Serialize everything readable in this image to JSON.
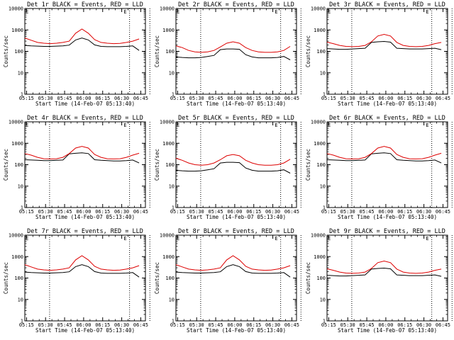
{
  "chart_data": [
    {
      "type": "line",
      "title": "Det 1r BLACK = Events, RED = LLD",
      "ylabel": "Counts/sec",
      "xlabel": "Start Time (14-Feb-07 05:13:40)",
      "yscale": "log",
      "ylim": [
        1,
        10000
      ],
      "ytick_labels": [
        "1",
        "10",
        "100",
        "1000",
        "10000"
      ],
      "xtick_labels": [
        "05:15",
        "05:30",
        "05:45",
        "06:00",
        "06:15",
        "06:30",
        "06:45"
      ],
      "markers_minutes": [
        19.5,
        82.5,
        98.5
      ],
      "series": [
        {
          "name": "Events",
          "color": "#000000",
          "values": [
            190,
            180,
            175,
            170,
            170,
            175,
            180,
            195,
            340,
            420,
            340,
            200,
            170,
            165,
            165,
            165,
            170,
            180,
            110
          ]
        },
        {
          "name": "LLD",
          "color": "#dd0000",
          "values": [
            420,
            330,
            260,
            240,
            230,
            240,
            260,
            300,
            700,
            1100,
            700,
            350,
            260,
            240,
            230,
            235,
            260,
            300,
            380
          ]
        }
      ]
    },
    {
      "type": "line",
      "title": "Det 2r BLACK = Events, RED = LLD",
      "ylabel": "Counts/sec",
      "xlabel": "Start Time (14-Feb-07 05:13:40)",
      "yscale": "log",
      "ylim": [
        1,
        10000
      ],
      "ytick_labels": [
        "1",
        "10",
        "100",
        "1000",
        "10000"
      ],
      "xtick_labels": [
        "05:15",
        "05:30",
        "05:45",
        "06:00",
        "06:15",
        "06:30",
        "06:45"
      ],
      "markers_minutes": [
        19.5,
        82.5,
        98.5
      ],
      "series": [
        {
          "name": "Events",
          "color": "#000000",
          "values": [
            55,
            52,
            50,
            50,
            52,
            58,
            65,
            120,
            130,
            130,
            125,
            70,
            55,
            50,
            50,
            50,
            52,
            58,
            40
          ]
        },
        {
          "name": "LLD",
          "color": "#dd0000",
          "values": [
            180,
            150,
            110,
            95,
            90,
            95,
            110,
            160,
            240,
            280,
            240,
            150,
            110,
            95,
            90,
            90,
            95,
            110,
            170
          ]
        }
      ]
    },
    {
      "type": "line",
      "title": "Det 3r BLACK = Events, RED = LLD",
      "ylabel": "Counts/sec",
      "xlabel": "Start Time (14-Feb-07 05:13:40)",
      "yscale": "log",
      "ylim": [
        1,
        10000
      ],
      "ytick_labels": [
        "1",
        "10",
        "100",
        "1000",
        "10000"
      ],
      "xtick_labels": [
        "05:15",
        "05:30",
        "05:45",
        "06:00",
        "06:15",
        "06:30",
        "06:45"
      ],
      "markers_minutes": [
        19.5,
        82.5,
        98.5
      ],
      "series": [
        {
          "name": "Events",
          "color": "#000000",
          "values": [
            135,
            130,
            125,
            125,
            130,
            135,
            140,
            260,
            280,
            290,
            270,
            140,
            135,
            130,
            130,
            130,
            135,
            140,
            120
          ]
        },
        {
          "name": "LLD",
          "color": "#dd0000",
          "values": [
            270,
            230,
            190,
            170,
            165,
            170,
            190,
            280,
            520,
            620,
            520,
            260,
            190,
            170,
            165,
            170,
            190,
            230,
            260
          ]
        }
      ]
    },
    {
      "type": "line",
      "title": "Det 4r BLACK = Events, RED = LLD",
      "ylabel": "Counts/sec",
      "xlabel": "Start Time (14-Feb-07 05:13:40)",
      "yscale": "log",
      "ylim": [
        1,
        10000
      ],
      "ytick_labels": [
        "1",
        "10",
        "100",
        "1000",
        "10000"
      ],
      "xtick_labels": [
        "05:15",
        "05:30",
        "05:45",
        "06:00",
        "06:15",
        "06:30",
        "06:45"
      ],
      "markers_minutes": [
        19.5,
        82.5,
        98.5
      ],
      "series": [
        {
          "name": "Events",
          "color": "#000000",
          "values": [
            170,
            165,
            160,
            155,
            155,
            160,
            165,
            320,
            340,
            360,
            330,
            170,
            160,
            155,
            150,
            150,
            155,
            165,
            120
          ]
        },
        {
          "name": "LLD",
          "color": "#dd0000",
          "values": [
            330,
            280,
            220,
            190,
            185,
            190,
            220,
            330,
            600,
            720,
            600,
            300,
            220,
            190,
            185,
            190,
            220,
            280,
            340
          ]
        }
      ]
    },
    {
      "type": "line",
      "title": "Det 5r BLACK = Events, RED = LLD",
      "ylabel": "Counts/sec",
      "xlabel": "Start Time (14-Feb-07 05:13:40)",
      "yscale": "log",
      "ylim": [
        1,
        10000
      ],
      "ytick_labels": [
        "1",
        "10",
        "100",
        "1000",
        "10000"
      ],
      "xtick_labels": [
        "05:15",
        "05:30",
        "05:45",
        "06:00",
        "06:15",
        "06:30",
        "06:45"
      ],
      "markers_minutes": [
        19.5,
        82.5,
        98.5
      ],
      "series": [
        {
          "name": "Events",
          "color": "#000000",
          "values": [
            55,
            52,
            50,
            50,
            52,
            58,
            65,
            120,
            130,
            130,
            125,
            70,
            55,
            50,
            50,
            50,
            52,
            58,
            40
          ]
        },
        {
          "name": "LLD",
          "color": "#dd0000",
          "values": [
            200,
            160,
            120,
            100,
            95,
            100,
            120,
            170,
            260,
            300,
            260,
            160,
            120,
            100,
            95,
            95,
            100,
            120,
            180
          ]
        }
      ]
    },
    {
      "type": "line",
      "title": "Det 6r BLACK = Events, RED = LLD",
      "ylabel": "Counts/sec",
      "xlabel": "Start Time (14-Feb-07 05:13:40)",
      "yscale": "log",
      "ylim": [
        1,
        10000
      ],
      "ytick_labels": [
        "1",
        "10",
        "100",
        "1000",
        "10000"
      ],
      "xtick_labels": [
        "05:15",
        "05:30",
        "05:45",
        "06:00",
        "06:15",
        "06:30",
        "06:45"
      ],
      "markers_minutes": [
        19.5,
        82.5,
        98.5
      ],
      "series": [
        {
          "name": "Events",
          "color": "#000000",
          "values": [
            170,
            165,
            160,
            155,
            155,
            160,
            165,
            320,
            340,
            360,
            330,
            170,
            160,
            155,
            150,
            150,
            155,
            165,
            120
          ]
        },
        {
          "name": "LLD",
          "color": "#dd0000",
          "values": [
            330,
            280,
            220,
            190,
            185,
            190,
            220,
            330,
            600,
            720,
            600,
            300,
            220,
            190,
            185,
            190,
            220,
            280,
            340
          ]
        }
      ]
    },
    {
      "type": "line",
      "title": "Det 7r BLACK = Events, RED = LLD",
      "ylabel": "Counts/sec",
      "xlabel": "Start Time (14-Feb-07 05:13:40)",
      "yscale": "log",
      "ylim": [
        1,
        10000
      ],
      "ytick_labels": [
        "1",
        "10",
        "100",
        "1000",
        "10000"
      ],
      "xtick_labels": [
        "05:15",
        "05:30",
        "05:45",
        "06:00",
        "06:15",
        "06:30",
        "06:45"
      ],
      "markers_minutes": [
        19.5,
        82.5,
        98.5
      ],
      "series": [
        {
          "name": "Events",
          "color": "#000000",
          "values": [
            190,
            180,
            175,
            170,
            170,
            175,
            180,
            195,
            340,
            420,
            340,
            200,
            170,
            165,
            165,
            165,
            170,
            180,
            110
          ]
        },
        {
          "name": "LLD",
          "color": "#dd0000",
          "values": [
            420,
            330,
            260,
            240,
            230,
            240,
            260,
            300,
            700,
            1100,
            700,
            350,
            260,
            240,
            230,
            235,
            260,
            300,
            380
          ]
        }
      ]
    },
    {
      "type": "line",
      "title": "Det 8r BLACK = Events, RED = LLD",
      "ylabel": "Counts/sec",
      "xlabel": "Start Time (14-Feb-07 05:13:40)",
      "yscale": "log",
      "ylim": [
        1,
        10000
      ],
      "ytick_labels": [
        "1",
        "10",
        "100",
        "1000",
        "10000"
      ],
      "xtick_labels": [
        "05:15",
        "05:30",
        "05:45",
        "06:00",
        "06:15",
        "06:30",
        "06:45"
      ],
      "markers_minutes": [
        19.5,
        82.5,
        98.5
      ],
      "series": [
        {
          "name": "Events",
          "color": "#000000",
          "values": [
            190,
            180,
            175,
            170,
            170,
            175,
            180,
            195,
            340,
            420,
            340,
            200,
            170,
            165,
            165,
            165,
            170,
            180,
            110
          ]
        },
        {
          "name": "LLD",
          "color": "#dd0000",
          "values": [
            420,
            330,
            260,
            240,
            230,
            240,
            260,
            300,
            700,
            1100,
            700,
            350,
            260,
            240,
            230,
            235,
            260,
            300,
            380
          ]
        }
      ]
    },
    {
      "type": "line",
      "title": "Det 9r BLACK = Events, RED = LLD",
      "ylabel": "Counts/sec",
      "xlabel": "Start Time (14-Feb-07 05:13:40)",
      "yscale": "log",
      "ylim": [
        1,
        10000
      ],
      "ytick_labels": [
        "1",
        "10",
        "100",
        "1000",
        "10000"
      ],
      "xtick_labels": [
        "05:15",
        "05:30",
        "05:45",
        "06:00",
        "06:15",
        "06:30",
        "06:45"
      ],
      "markers_minutes": [
        19.5,
        82.5,
        98.5
      ],
      "series": [
        {
          "name": "Events",
          "color": "#000000",
          "values": [
            135,
            130,
            125,
            125,
            130,
            135,
            140,
            260,
            280,
            290,
            270,
            140,
            135,
            130,
            130,
            130,
            135,
            140,
            120
          ]
        },
        {
          "name": "LLD",
          "color": "#dd0000",
          "values": [
            270,
            230,
            190,
            170,
            165,
            170,
            190,
            280,
            520,
            620,
            520,
            260,
            190,
            170,
            165,
            170,
            190,
            230,
            260
          ]
        }
      ]
    }
  ],
  "x_minutes_per_step": 5,
  "x_start_minute": 0,
  "x_range_minutes": [
    0,
    95
  ],
  "corner_glyph": "E"
}
